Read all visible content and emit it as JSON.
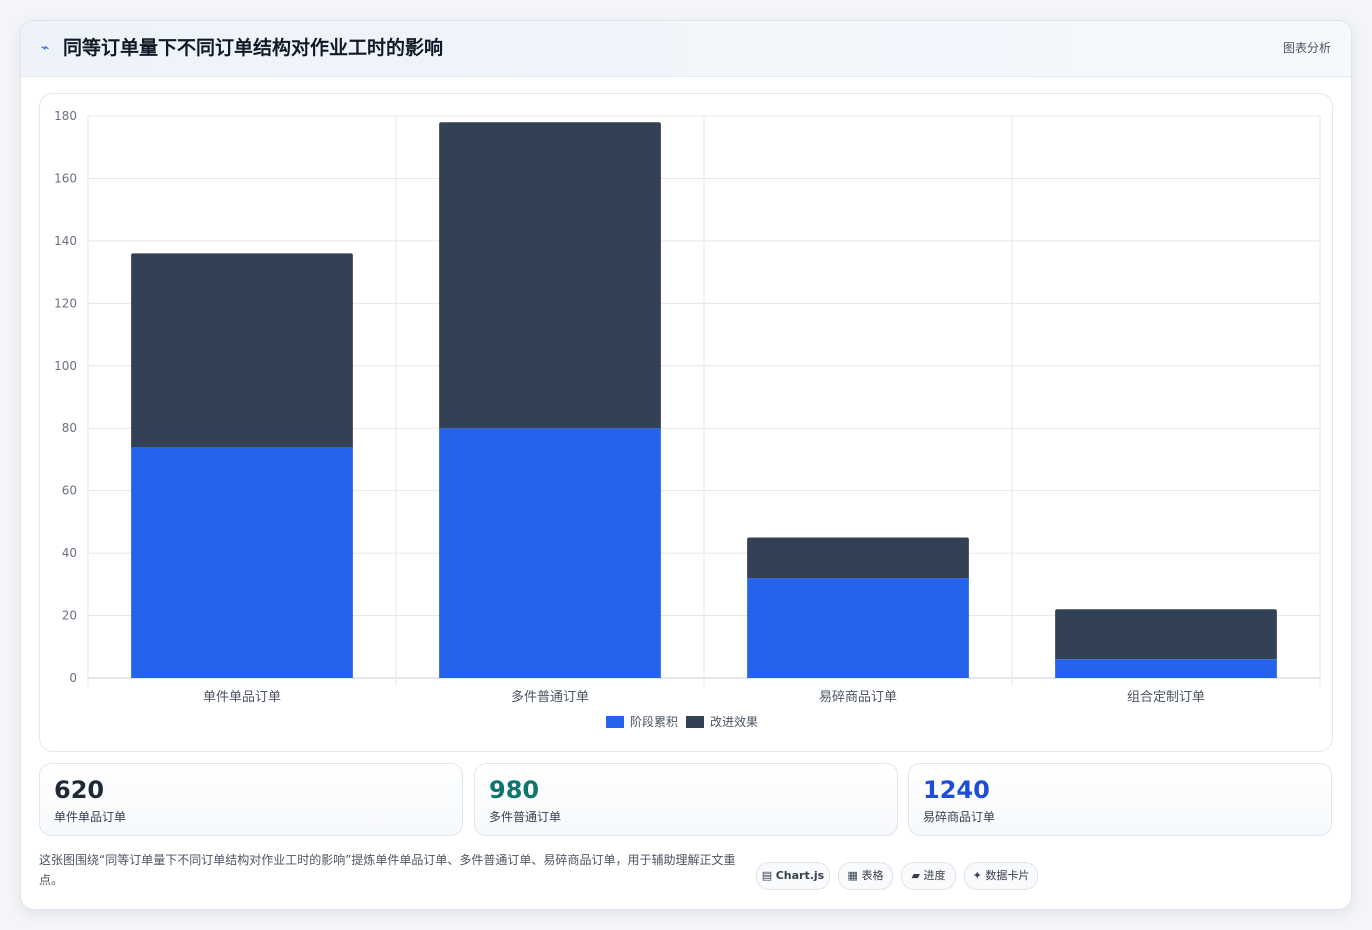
{
  "header": {
    "icon": "wave-icon",
    "title": "同等订单量下不同订单结构对作业工时的影响",
    "tag": "图表分析"
  },
  "chart_data": {
    "type": "bar",
    "stacked": true,
    "categories": [
      "单件单品订单",
      "多件普通订单",
      "易碎商品订单",
      "组合定制订单"
    ],
    "series": [
      {
        "name": "阶段累积",
        "color": "#2563eb",
        "values": [
          74,
          80,
          32,
          6
        ]
      },
      {
        "name": "改进效果",
        "color": "#334155",
        "values": [
          62,
          98,
          13,
          16
        ]
      }
    ],
    "ylim": [
      0,
      180
    ],
    "yticks": [
      0,
      20,
      40,
      60,
      80,
      100,
      120,
      140,
      160,
      180
    ],
    "grid": true,
    "legend": "bottom"
  },
  "stats": [
    {
      "value": "620",
      "label": "单件单品订单",
      "color": "#1f2937"
    },
    {
      "value": "980",
      "label": "多件普通订单",
      "color": "#0f766e"
    },
    {
      "value": "1240",
      "label": "易碎商品订单",
      "color": "#1d4ed8"
    }
  ],
  "footer": {
    "text": "这张图围绕“同等订单量下不同订单结构对作业工时的影响”提炼单件单品订单、多件普通订单、易碎商品订单，用于辅助理解正文重点。",
    "tags": [
      {
        "icon": "chart-icon",
        "glyph": "▤",
        "label": "Chart.js"
      },
      {
        "icon": "table-icon",
        "glyph": "▦",
        "label": "表格"
      },
      {
        "icon": "progress-icon",
        "glyph": "▰",
        "label": "进度"
      },
      {
        "icon": "sparkle-icon",
        "glyph": "✦",
        "label": "数据卡片"
      }
    ]
  }
}
